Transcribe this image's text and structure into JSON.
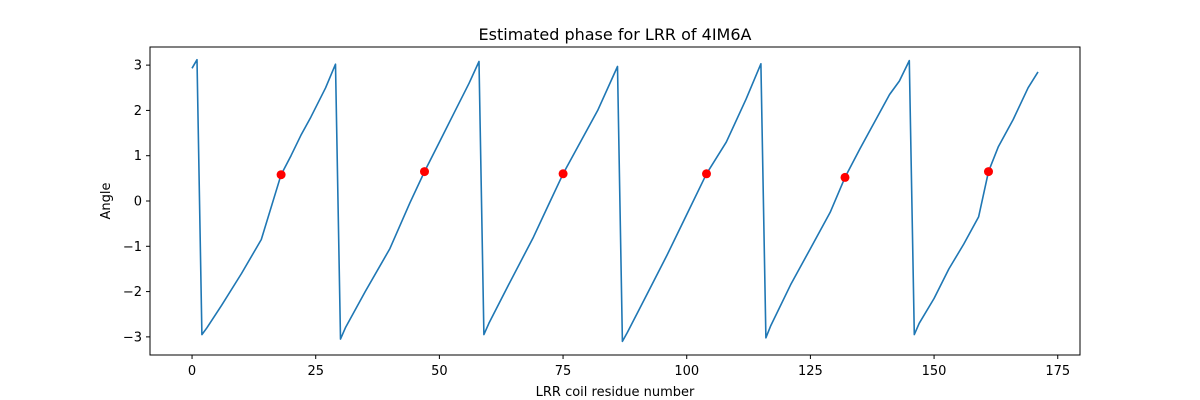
{
  "chart_data": {
    "type": "line",
    "title": "Estimated phase for LRR of 4IM6A",
    "xlabel": "LRR coil residue number",
    "ylabel": "Angle",
    "xlim": [
      -8.5,
      179.5
    ],
    "ylim": [
      -3.4,
      3.4
    ],
    "xticks": [
      0,
      25,
      50,
      75,
      100,
      125,
      150,
      175
    ],
    "yticks": [
      -3,
      -2,
      -1,
      0,
      1,
      2,
      3
    ],
    "grid": false,
    "line_color": "#1f77b4",
    "marker_color": "#ff0000",
    "series": [
      {
        "kind": "line",
        "points": [
          [
            0,
            2.93
          ],
          [
            1,
            3.12
          ],
          [
            2,
            -2.95
          ],
          [
            3,
            -2.8
          ],
          [
            6,
            -2.3
          ],
          [
            10,
            -1.6
          ],
          [
            14,
            -0.85
          ],
          [
            18,
            0.58
          ],
          [
            20,
            1.0
          ],
          [
            22,
            1.45
          ],
          [
            24,
            1.85
          ],
          [
            27,
            2.5
          ],
          [
            29,
            3.02
          ],
          [
            30,
            -3.05
          ],
          [
            31,
            -2.8
          ],
          [
            35,
            -2.0
          ],
          [
            40,
            -1.05
          ],
          [
            44,
            -0.05
          ],
          [
            47,
            0.65
          ],
          [
            50,
            1.3
          ],
          [
            53,
            1.95
          ],
          [
            56,
            2.6
          ],
          [
            58,
            3.08
          ],
          [
            59,
            -2.95
          ],
          [
            60,
            -2.7
          ],
          [
            64,
            -1.85
          ],
          [
            69,
            -0.8
          ],
          [
            72,
            -0.1
          ],
          [
            75,
            0.6
          ],
          [
            78,
            1.2
          ],
          [
            82,
            2.0
          ],
          [
            86,
            2.97
          ],
          [
            87,
            -3.1
          ],
          [
            88,
            -2.9
          ],
          [
            92,
            -2.05
          ],
          [
            96,
            -1.2
          ],
          [
            100,
            -0.3
          ],
          [
            104,
            0.6
          ],
          [
            108,
            1.3
          ],
          [
            112,
            2.25
          ],
          [
            115,
            3.03
          ],
          [
            116,
            -3.02
          ],
          [
            117,
            -2.75
          ],
          [
            121,
            -1.85
          ],
          [
            125,
            -1.05
          ],
          [
            129,
            -0.25
          ],
          [
            132,
            0.52
          ],
          [
            135,
            1.15
          ],
          [
            138,
            1.75
          ],
          [
            141,
            2.35
          ],
          [
            143,
            2.65
          ],
          [
            145,
            3.1
          ],
          [
            146,
            -2.95
          ],
          [
            147,
            -2.7
          ],
          [
            150,
            -2.15
          ],
          [
            153,
            -1.5
          ],
          [
            156,
            -0.95
          ],
          [
            159,
            -0.35
          ],
          [
            161,
            0.65
          ],
          [
            163,
            1.2
          ],
          [
            166,
            1.8
          ],
          [
            169,
            2.5
          ],
          [
            171,
            2.85
          ]
        ]
      },
      {
        "kind": "markers",
        "points": [
          [
            18,
            0.58
          ],
          [
            47,
            0.65
          ],
          [
            75,
            0.6
          ],
          [
            104,
            0.6
          ],
          [
            132,
            0.52
          ],
          [
            161,
            0.65
          ]
        ]
      }
    ]
  }
}
